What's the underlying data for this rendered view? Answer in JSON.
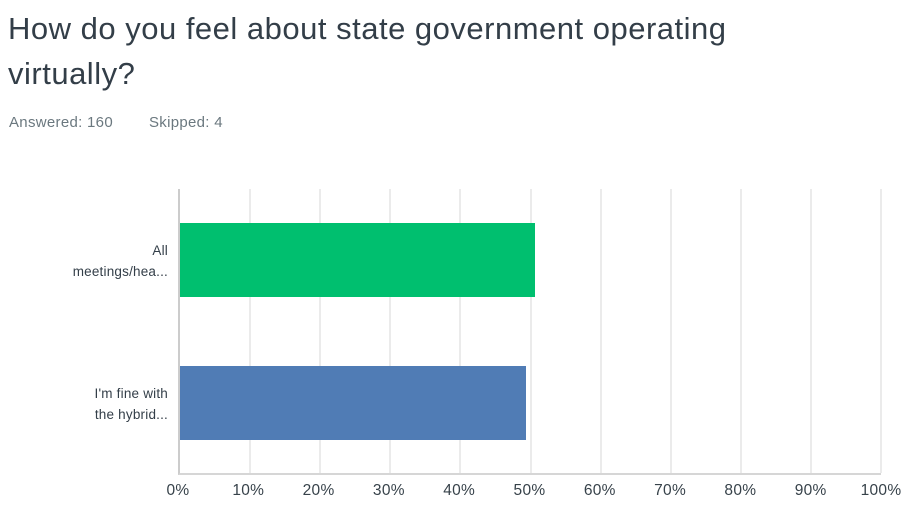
{
  "header": {
    "title": "How do you feel about state government operating virtually?",
    "title_lines": [
      "How do you feel about state government operating",
      "virtually?"
    ],
    "answered_label": "Answered: 160",
    "skipped_label": "Skipped: 4"
  },
  "colors": {
    "bar_green": "#00BF6F",
    "bar_blue": "#507CB5",
    "text_dark": "#333E48",
    "text_gray": "#6B787F",
    "gridline": "#ebebeb",
    "axis": "#cccccc"
  },
  "chart_data": {
    "type": "bar",
    "orientation": "horizontal",
    "title": "How do you feel about state government operating virtually?",
    "categories": [
      "All meetings/hea...",
      "I'm fine with the hybrid..."
    ],
    "category_lines": [
      [
        "All",
        "meetings/hea..."
      ],
      [
        "I'm fine with",
        "the hybrid..."
      ]
    ],
    "values": [
      50.63,
      49.38
    ],
    "value_unit": "%",
    "bar_colors": [
      "#00BF6F",
      "#507CB5"
    ],
    "xlim": [
      0,
      100
    ],
    "x_ticks": [
      "0%",
      "10%",
      "20%",
      "30%",
      "40%",
      "50%",
      "60%",
      "70%",
      "80%",
      "90%",
      "100%"
    ],
    "xlabel": "",
    "ylabel": "",
    "grid": true,
    "legend": false
  }
}
